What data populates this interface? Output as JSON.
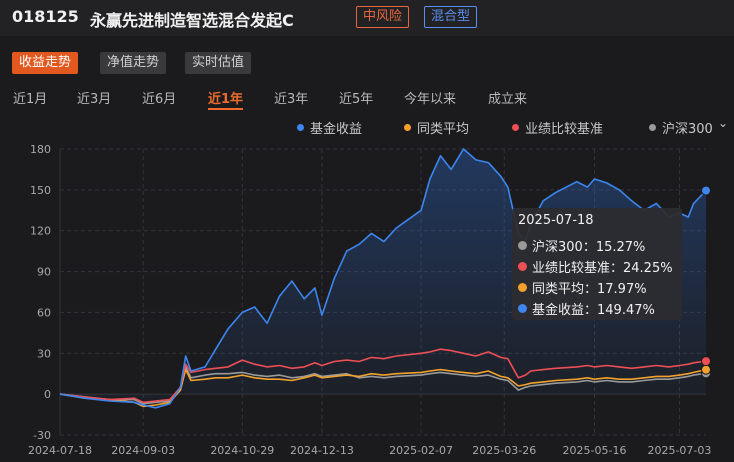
{
  "header": {
    "fund_code": "018125",
    "fund_name": "永赢先进制造智选混合发起C",
    "risk_tag": "中风险",
    "type_tag": "混合型",
    "risk_color": "#e8663c",
    "type_color": "#5b8ef0"
  },
  "view_tabs": [
    {
      "label": "收益走势",
      "active": true
    },
    {
      "label": "净值走势",
      "active": false
    },
    {
      "label": "实时估值",
      "active": false
    }
  ],
  "periods": [
    {
      "label": "近1月",
      "active": false
    },
    {
      "label": "近3月",
      "active": false
    },
    {
      "label": "近6月",
      "active": false
    },
    {
      "label": "近1年",
      "active": true
    },
    {
      "label": "近3年",
      "active": false
    },
    {
      "label": "近5年",
      "active": false
    },
    {
      "label": "今年以来",
      "active": false
    },
    {
      "label": "成立来",
      "active": false
    }
  ],
  "legend": [
    {
      "label": "基金收益",
      "color": "#3d86f0"
    },
    {
      "label": "同类平均",
      "color": "#f2a22c"
    },
    {
      "label": "业绩比较基准",
      "color": "#ee4f55"
    },
    {
      "label": "沪深300",
      "color": "#9a9a9a"
    }
  ],
  "legend_more_icon": "chevron-down-icon",
  "tooltip": {
    "date": "2025-07-18",
    "rows": [
      {
        "label": "沪深300：15.27%",
        "color": "#9a9a9a"
      },
      {
        "label": "业绩比较基准：24.25%",
        "color": "#ee4f55"
      },
      {
        "label": "同类平均：17.97%",
        "color": "#f2a22c"
      },
      {
        "label": "基金收益：149.47%",
        "color": "#3d86f0"
      }
    ]
  },
  "chart_data": {
    "type": "line",
    "ylim": [
      -30,
      180
    ],
    "yticks": [
      -30,
      0,
      30,
      60,
      90,
      120,
      150,
      180
    ],
    "xticks": [
      "2024-07-18",
      "2024-09-03",
      "2024-10-29",
      "2024-12-13",
      "2025-02-07",
      "2025-03-26",
      "2025-05-16",
      "2025-07-03"
    ],
    "grid": true,
    "x": [
      "2024-07-18",
      "2024-08-01",
      "2024-08-15",
      "2024-08-29",
      "2024-09-03",
      "2024-09-10",
      "2024-09-18",
      "2024-09-24",
      "2024-09-27",
      "2024-09-30",
      "2024-10-08",
      "2024-10-14",
      "2024-10-21",
      "2024-10-29",
      "2024-11-05",
      "2024-11-12",
      "2024-11-19",
      "2024-11-26",
      "2024-12-03",
      "2024-12-09",
      "2024-12-13",
      "2024-12-20",
      "2024-12-27",
      "2025-01-03",
      "2025-01-10",
      "2025-01-17",
      "2025-01-24",
      "2025-02-07",
      "2025-02-12",
      "2025-02-18",
      "2025-02-24",
      "2025-03-03",
      "2025-03-10",
      "2025-03-17",
      "2025-03-24",
      "2025-03-28",
      "2025-04-03",
      "2025-04-07",
      "2025-04-10",
      "2025-04-17",
      "2025-04-24",
      "2025-05-06",
      "2025-05-12",
      "2025-05-16",
      "2025-05-23",
      "2025-05-30",
      "2025-06-06",
      "2025-06-13",
      "2025-06-20",
      "2025-06-27",
      "2025-07-03",
      "2025-07-08",
      "2025-07-11",
      "2025-07-18"
    ],
    "series": [
      {
        "name": "基金收益",
        "color": "#3d86f0",
        "values": [
          0,
          -3,
          -5,
          -6,
          -8,
          -10,
          -7,
          5,
          28,
          17,
          20,
          33,
          48,
          60,
          64,
          52,
          72,
          83,
          70,
          78,
          58,
          85,
          105,
          110,
          118,
          112,
          122,
          135,
          158,
          175,
          165,
          180,
          172,
          170,
          160,
          152,
          118,
          113,
          125,
          142,
          148,
          156,
          152,
          158,
          155,
          150,
          142,
          135,
          140,
          130,
          133,
          130,
          140,
          149.47
        ]
      },
      {
        "name": "业绩比较基准",
        "color": "#ee4f55",
        "values": [
          0,
          -2,
          -4,
          -3,
          -6,
          -5,
          -4,
          5,
          22,
          16,
          18,
          19,
          20,
          25,
          22,
          20,
          21,
          19,
          20,
          23,
          21,
          24,
          25,
          24,
          27,
          26,
          28,
          30,
          31,
          33,
          32,
          30,
          28,
          31,
          27,
          26,
          12,
          14,
          17,
          18,
          19,
          20,
          21,
          20,
          21,
          20,
          19,
          20,
          21,
          20,
          21,
          22,
          23,
          24.25
        ]
      },
      {
        "name": "同类平均",
        "color": "#f2a22c",
        "values": [
          0,
          -3,
          -4,
          -6,
          -9,
          -8,
          -6,
          3,
          18,
          10,
          11,
          12,
          12,
          14,
          12,
          11,
          11,
          10,
          12,
          14,
          12,
          13,
          14,
          13,
          15,
          14,
          15,
          16,
          17,
          18,
          17,
          16,
          15,
          17,
          13,
          12,
          6,
          7,
          8,
          9,
          10,
          11,
          12,
          11,
          12,
          11,
          11,
          12,
          13,
          13,
          14,
          15,
          16,
          17.97
        ]
      },
      {
        "name": "沪深300",
        "color": "#9a9a9a",
        "values": [
          0,
          -2,
          -4,
          -4,
          -7,
          -6,
          -5,
          3,
          20,
          12,
          14,
          15,
          15,
          16,
          14,
          13,
          14,
          12,
          13,
          15,
          13,
          14,
          15,
          12,
          13,
          12,
          13,
          14,
          15,
          16,
          15,
          14,
          13,
          14,
          11,
          10,
          3,
          5,
          6,
          7,
          8,
          9,
          10,
          9,
          10,
          9,
          9,
          10,
          11,
          11,
          12,
          13,
          14,
          15.27
        ]
      }
    ]
  }
}
